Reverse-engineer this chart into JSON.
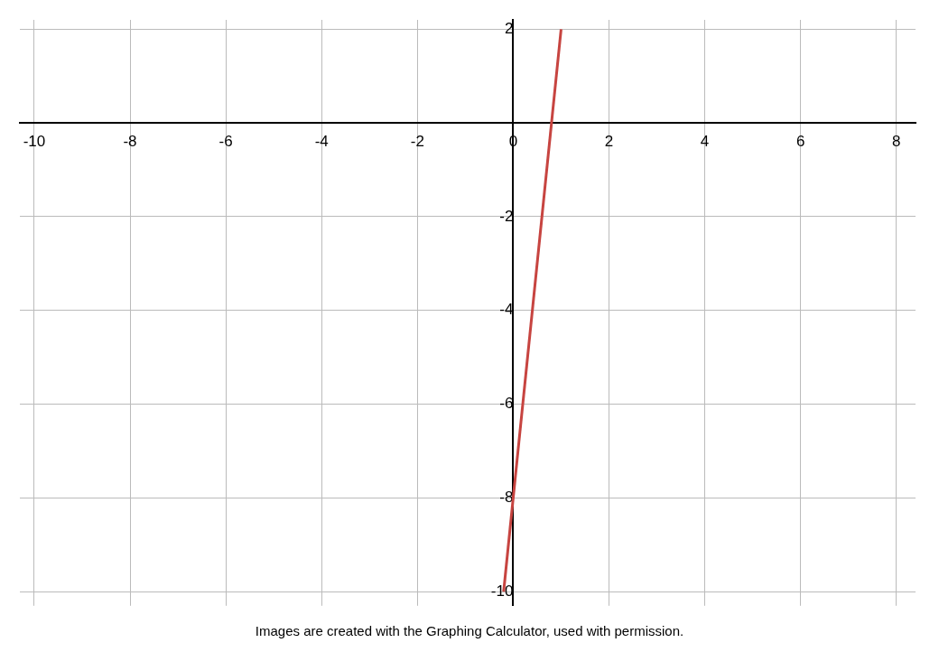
{
  "chart_data": {
    "type": "line",
    "x": [
      -0.2,
      1
    ],
    "series": [
      {
        "color": "#c74440",
        "values": [
          -10,
          2
        ]
      }
    ],
    "xlim": [
      -10.3,
      8.4
    ],
    "ylim": [
      -10.3,
      2.2
    ],
    "xticks": [
      -10,
      -8,
      -6,
      -4,
      -2,
      0,
      2,
      4,
      6,
      8
    ],
    "yticks": [
      -10,
      -8,
      -6,
      -4,
      -2,
      2
    ],
    "grid": true,
    "legend": false,
    "marker": "none",
    "line_style": "solid",
    "annotations": [
      "Images are created with the Graphing Calculator, used with permission."
    ]
  }
}
